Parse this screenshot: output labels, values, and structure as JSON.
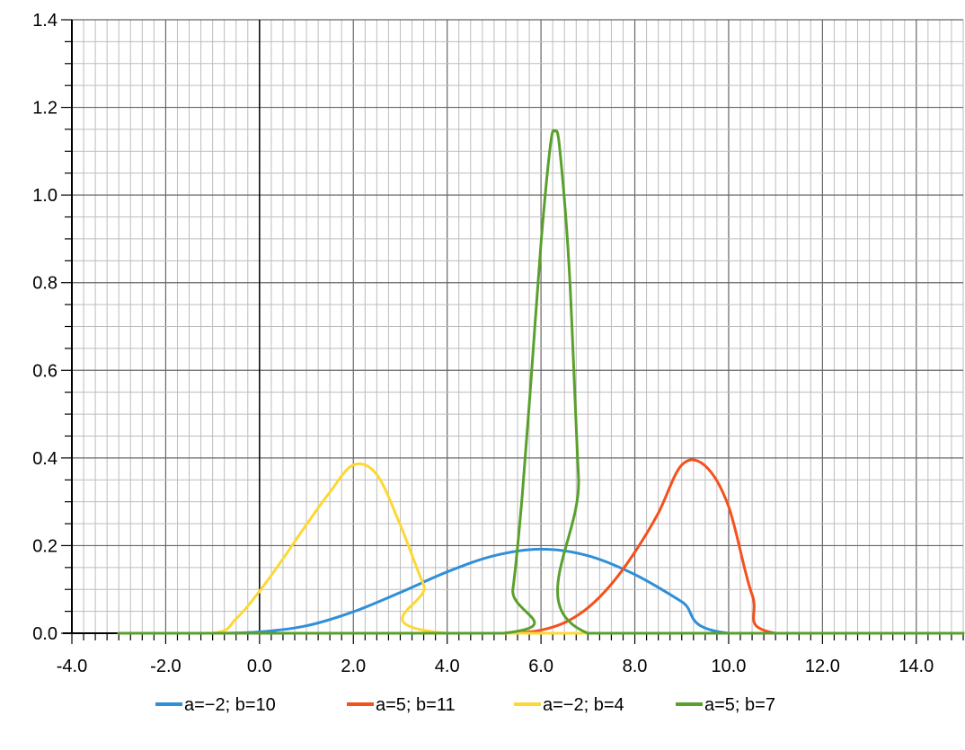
{
  "chart_data": {
    "type": "line",
    "title": "",
    "xlabel": "",
    "ylabel": "",
    "xlim": [
      -4.0,
      15.0
    ],
    "ylim": [
      0.0,
      1.4
    ],
    "x_ticks": [
      "-4.0",
      "-2.0",
      "0.0",
      "2.0",
      "4.0",
      "6.0",
      "8.0",
      "10.0",
      "12.0",
      "14.0"
    ],
    "y_ticks": [
      "0.0",
      "0.2",
      "0.4",
      "0.6",
      "0.8",
      "1.0",
      "1.2",
      "1.4"
    ],
    "grid": true,
    "legend_position": "bottom",
    "series": [
      {
        "name": "a=−2; b=10",
        "color": "#2f8fd8",
        "x": [
          -3.0,
          -1.0,
          0.0,
          1.0,
          2.0,
          3.0,
          4.0,
          5.0,
          6.0,
          7.0,
          8.0,
          9.0,
          10.0,
          15.0
        ],
        "y": [
          0.0,
          0.0,
          0.003,
          0.017,
          0.049,
          0.093,
          0.14,
          0.177,
          0.192,
          0.177,
          0.134,
          0.072,
          0.0,
          0.0
        ]
      },
      {
        "name": "a=5; b=11",
        "color": "#f4511e",
        "x": [
          -3.0,
          5.0,
          5.5,
          6.0,
          6.5,
          7.0,
          7.5,
          8.0,
          8.5,
          9.0,
          9.5,
          10.0,
          10.5,
          11.0,
          15.0
        ],
        "y": [
          0.0,
          0.0,
          0.001,
          0.007,
          0.024,
          0.058,
          0.112,
          0.185,
          0.274,
          0.384,
          0.382,
          0.289,
          0.088,
          0.0,
          0.0
        ]
      },
      {
        "name": "a=−2; b=4",
        "color": "#fdd835",
        "x": [
          -3.0,
          -1.0,
          -0.5,
          0.0,
          0.5,
          1.0,
          1.5,
          2.0,
          2.5,
          3.0,
          3.5,
          4.0,
          15.0
        ],
        "y": [
          0.0,
          0.0,
          0.033,
          0.096,
          0.17,
          0.248,
          0.322,
          0.384,
          0.362,
          0.247,
          0.11,
          0.0,
          0.0
        ]
      },
      {
        "name": "a=5; b=7",
        "color": "#5aa02c",
        "x": [
          -3.0,
          5.2,
          5.4,
          5.6,
          5.8,
          6.0,
          6.2,
          6.3,
          6.4,
          6.6,
          6.8,
          7.0,
          15.0
        ],
        "y": [
          0.0,
          0.0,
          0.1,
          0.314,
          0.596,
          0.89,
          1.113,
          1.146,
          1.105,
          0.834,
          0.356,
          0.0,
          0.0
        ]
      }
    ]
  }
}
